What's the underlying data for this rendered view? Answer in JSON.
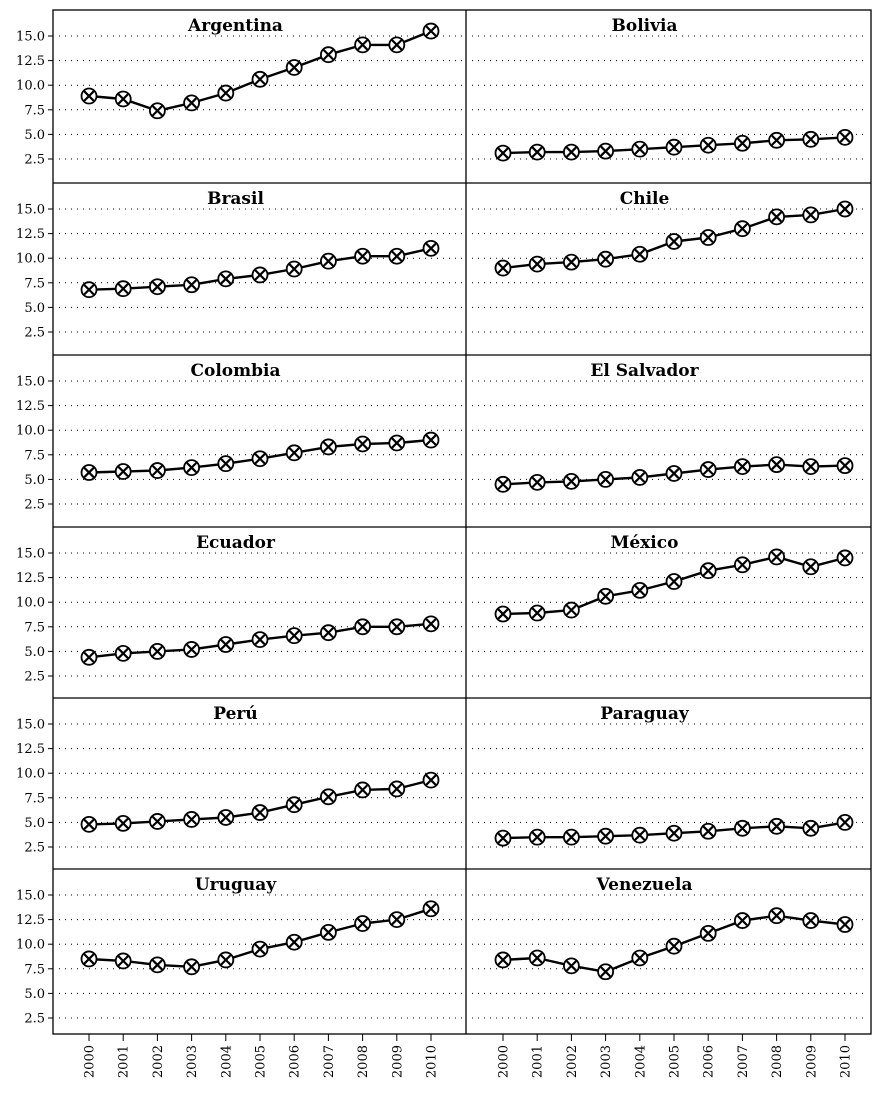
{
  "chart_data": {
    "type": "line",
    "layout": "small-multiples",
    "columns": 2,
    "x": [
      "2000",
      "2001",
      "2002",
      "2003",
      "2004",
      "2005",
      "2006",
      "2007",
      "2008",
      "2009",
      "2010"
    ],
    "y_ticks": [
      "2.5",
      "5.0",
      "7.5",
      "10.0",
      "12.5",
      "15.0"
    ],
    "ylim": [
      0,
      17
    ],
    "grid": "horizontal-dotted",
    "marker": "circled-x",
    "panels": [
      {
        "title": "Argentina",
        "values": [
          8.9,
          8.6,
          7.4,
          8.2,
          9.2,
          10.6,
          11.8,
          13.1,
          14.1,
          14.1,
          15.5
        ]
      },
      {
        "title": "Bolivia",
        "values": [
          3.1,
          3.2,
          3.2,
          3.3,
          3.5,
          3.7,
          3.9,
          4.1,
          4.4,
          4.5,
          4.7
        ]
      },
      {
        "title": "Brasil",
        "values": [
          6.8,
          6.9,
          7.1,
          7.3,
          7.9,
          8.3,
          8.9,
          9.7,
          10.2,
          10.2,
          11.0
        ]
      },
      {
        "title": "Chile",
        "values": [
          9.0,
          9.4,
          9.6,
          9.9,
          10.4,
          11.7,
          12.1,
          13.0,
          14.2,
          14.4,
          15.0
        ]
      },
      {
        "title": "Colombia",
        "values": [
          5.7,
          5.8,
          5.9,
          6.2,
          6.6,
          7.1,
          7.7,
          8.3,
          8.6,
          8.7,
          9.0
        ]
      },
      {
        "title": "El Salvador",
        "values": [
          4.5,
          4.7,
          4.8,
          5.0,
          5.2,
          5.6,
          6.0,
          6.3,
          6.5,
          6.3,
          6.4
        ]
      },
      {
        "title": "Ecuador",
        "values": [
          4.4,
          4.8,
          5.0,
          5.2,
          5.7,
          6.2,
          6.6,
          6.9,
          7.5,
          7.5,
          7.8
        ]
      },
      {
        "title": "México",
        "values": [
          8.8,
          8.9,
          9.2,
          10.6,
          11.2,
          12.1,
          13.2,
          13.8,
          14.6,
          13.6,
          14.5
        ]
      },
      {
        "title": "Perú",
        "values": [
          4.8,
          4.9,
          5.1,
          5.3,
          5.5,
          6.0,
          6.8,
          7.6,
          8.3,
          8.4,
          9.3
        ]
      },
      {
        "title": "Paraguay",
        "values": [
          3.4,
          3.5,
          3.5,
          3.6,
          3.7,
          3.9,
          4.1,
          4.4,
          4.6,
          4.4,
          5.0
        ]
      },
      {
        "title": "Uruguay",
        "values": [
          8.5,
          8.3,
          7.9,
          7.7,
          8.4,
          9.5,
          10.2,
          11.2,
          12.1,
          12.5,
          13.6
        ]
      },
      {
        "title": "Venezuela",
        "values": [
          8.4,
          8.6,
          7.8,
          7.2,
          8.6,
          9.8,
          11.1,
          12.4,
          12.9,
          12.4,
          12.0
        ]
      }
    ]
  }
}
